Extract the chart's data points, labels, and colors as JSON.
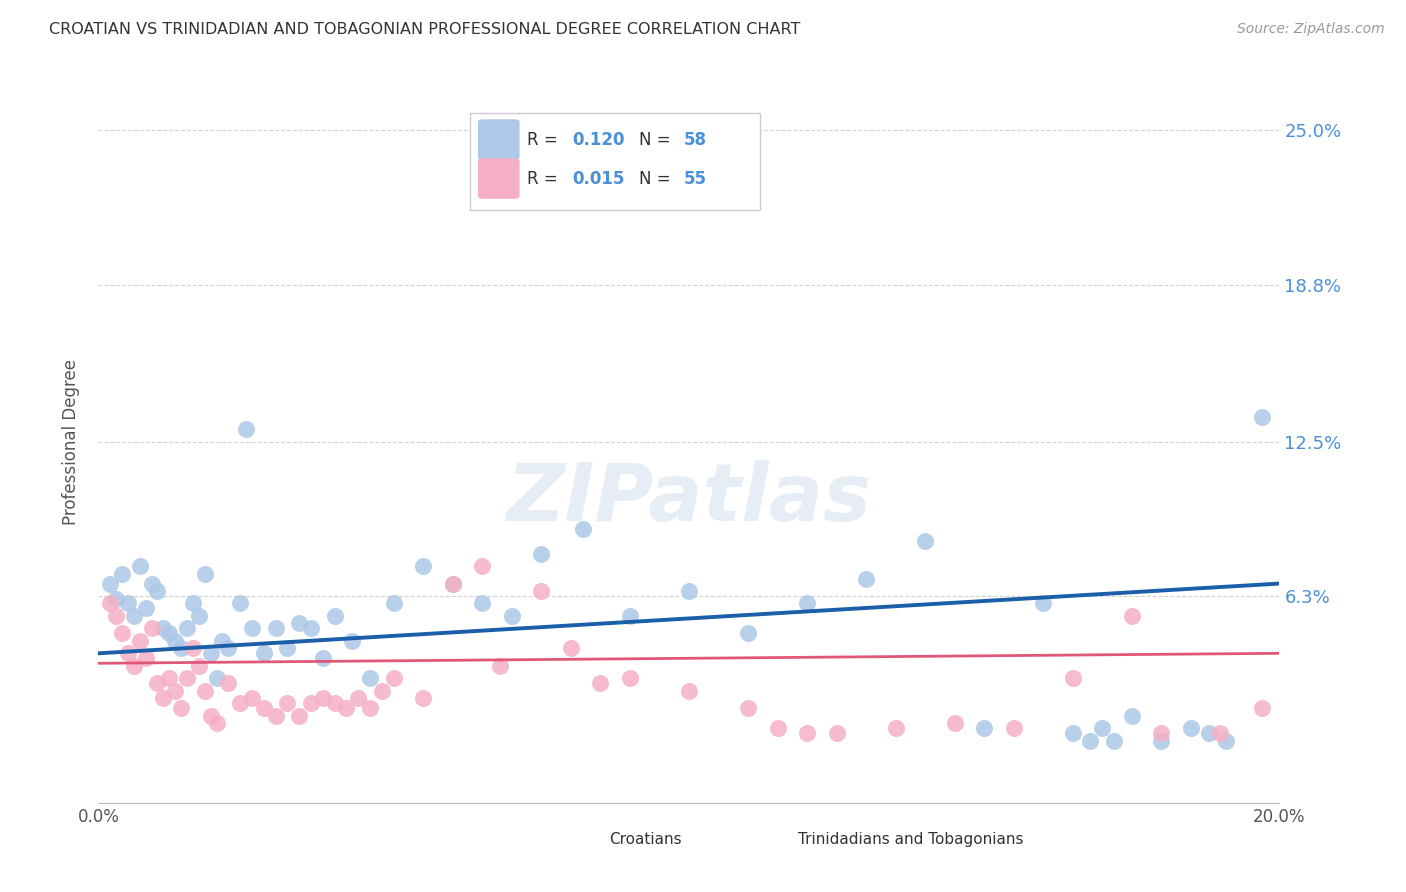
{
  "title": "CROATIAN VS TRINIDADIAN AND TOBAGONIAN PROFESSIONAL DEGREE CORRELATION CHART",
  "source": "Source: ZipAtlas.com",
  "ylabel": "Professional Degree",
  "y_tick_labels": [
    "6.3%",
    "12.5%",
    "18.8%",
    "25.0%"
  ],
  "y_tick_values": [
    0.063,
    0.125,
    0.188,
    0.25
  ],
  "xlim": [
    0.0,
    0.2
  ],
  "ylim": [
    -0.02,
    0.27
  ],
  "croatian_color": "#adc8e8",
  "trinidadian_color": "#f5afc4",
  "croatian_line_color": "#1a5fa8",
  "trinidadian_line_color": "#e05878",
  "legend_r1": "0.120",
  "legend_n1": "58",
  "legend_r2": "0.015",
  "legend_n2": "55",
  "bottom_legend_1": "Croatians",
  "bottom_legend_2": "Trinidadians and Tobagonians",
  "watermark": "ZIPatlas",
  "background_color": "#ffffff",
  "grid_color": "#c8c8c8",
  "title_color": "#333333",
  "right_label_color": "#4a90d9",
  "croatian_x": [
    0.002,
    0.003,
    0.004,
    0.005,
    0.006,
    0.007,
    0.008,
    0.009,
    0.01,
    0.011,
    0.012,
    0.013,
    0.014,
    0.015,
    0.016,
    0.017,
    0.018,
    0.019,
    0.02,
    0.021,
    0.022,
    0.024,
    0.025,
    0.026,
    0.028,
    0.03,
    0.032,
    0.034,
    0.036,
    0.038,
    0.04,
    0.043,
    0.046,
    0.05,
    0.055,
    0.06,
    0.065,
    0.07,
    0.075,
    0.082,
    0.09,
    0.1,
    0.11,
    0.12,
    0.13,
    0.14,
    0.15,
    0.16,
    0.165,
    0.168,
    0.17,
    0.172,
    0.175,
    0.18,
    0.185,
    0.188,
    0.191,
    0.197
  ],
  "croatian_y": [
    0.068,
    0.062,
    0.072,
    0.06,
    0.055,
    0.075,
    0.058,
    0.068,
    0.065,
    0.05,
    0.048,
    0.045,
    0.042,
    0.05,
    0.06,
    0.055,
    0.072,
    0.04,
    0.03,
    0.045,
    0.042,
    0.06,
    0.13,
    0.05,
    0.04,
    0.05,
    0.042,
    0.052,
    0.05,
    0.038,
    0.055,
    0.045,
    0.03,
    0.06,
    0.075,
    0.068,
    0.06,
    0.055,
    0.08,
    0.09,
    0.055,
    0.065,
    0.048,
    0.06,
    0.07,
    0.085,
    0.01,
    0.06,
    0.008,
    0.005,
    0.01,
    0.005,
    0.015,
    0.005,
    0.01,
    0.008,
    0.005,
    0.135
  ],
  "trinidadian_x": [
    0.002,
    0.003,
    0.004,
    0.005,
    0.006,
    0.007,
    0.008,
    0.009,
    0.01,
    0.011,
    0.012,
    0.013,
    0.014,
    0.015,
    0.016,
    0.017,
    0.018,
    0.019,
    0.02,
    0.022,
    0.024,
    0.026,
    0.028,
    0.03,
    0.032,
    0.034,
    0.036,
    0.038,
    0.04,
    0.042,
    0.044,
    0.046,
    0.048,
    0.05,
    0.055,
    0.06,
    0.065,
    0.068,
    0.075,
    0.08,
    0.085,
    0.09,
    0.1,
    0.11,
    0.115,
    0.12,
    0.125,
    0.135,
    0.145,
    0.155,
    0.165,
    0.175,
    0.18,
    0.19,
    0.197
  ],
  "trinidadian_y": [
    0.06,
    0.055,
    0.048,
    0.04,
    0.035,
    0.045,
    0.038,
    0.05,
    0.028,
    0.022,
    0.03,
    0.025,
    0.018,
    0.03,
    0.042,
    0.035,
    0.025,
    0.015,
    0.012,
    0.028,
    0.02,
    0.022,
    0.018,
    0.015,
    0.02,
    0.015,
    0.02,
    0.022,
    0.02,
    0.018,
    0.022,
    0.018,
    0.025,
    0.03,
    0.022,
    0.068,
    0.075,
    0.035,
    0.065,
    0.042,
    0.028,
    0.03,
    0.025,
    0.018,
    0.01,
    0.008,
    0.008,
    0.01,
    0.012,
    0.01,
    0.03,
    0.055,
    0.008,
    0.008,
    0.018
  ]
}
